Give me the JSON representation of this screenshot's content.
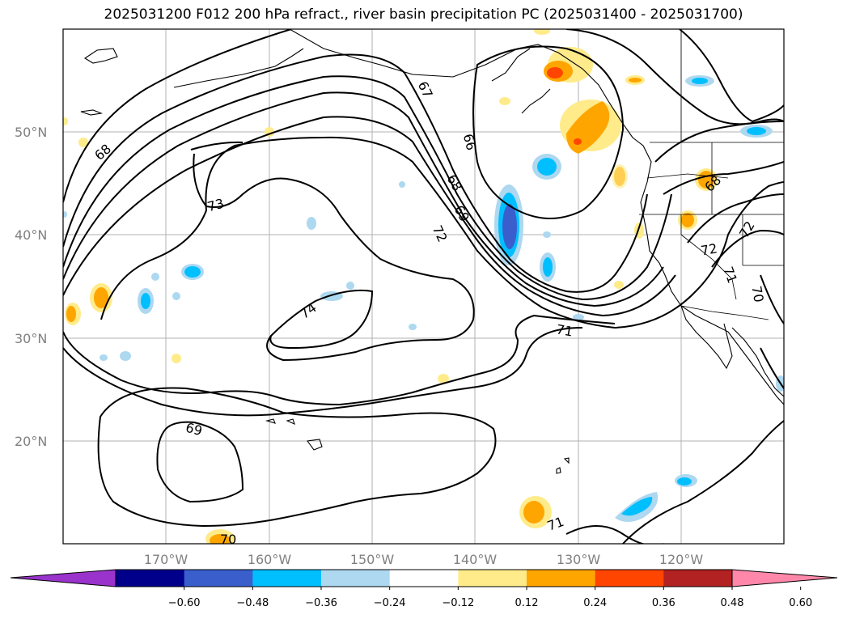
{
  "title": "2025031200 F012 200 hPa refract., river basin precipitation PC (2025031400 - 2025031700)",
  "map": {
    "lat_labels": [
      "50°N",
      "40°N",
      "30°N",
      "20°N"
    ],
    "lon_labels": [
      "170°W",
      "160°W",
      "150°W",
      "140°W",
      "130°W",
      "120°W"
    ],
    "contour_labels": [
      "67",
      "66",
      "68",
      "69",
      "72",
      "73",
      "68",
      "74",
      "71",
      "69",
      "71",
      "72",
      "71",
      "70",
      "68",
      "72",
      "70"
    ]
  },
  "colorbar": {
    "ticks": [
      "−0.60",
      "−0.48",
      "−0.36",
      "−0.24",
      "−0.12",
      "0.12",
      "0.24",
      "0.36",
      "0.48",
      "0.60"
    ],
    "colors": [
      "#9933cc",
      "#00008b",
      "#3a5fcd",
      "#00bfff",
      "#add8f0",
      "#ffffff",
      "#ffeb8a",
      "#ffa500",
      "#ff4500",
      "#b22222",
      "#ff88aa"
    ]
  }
}
